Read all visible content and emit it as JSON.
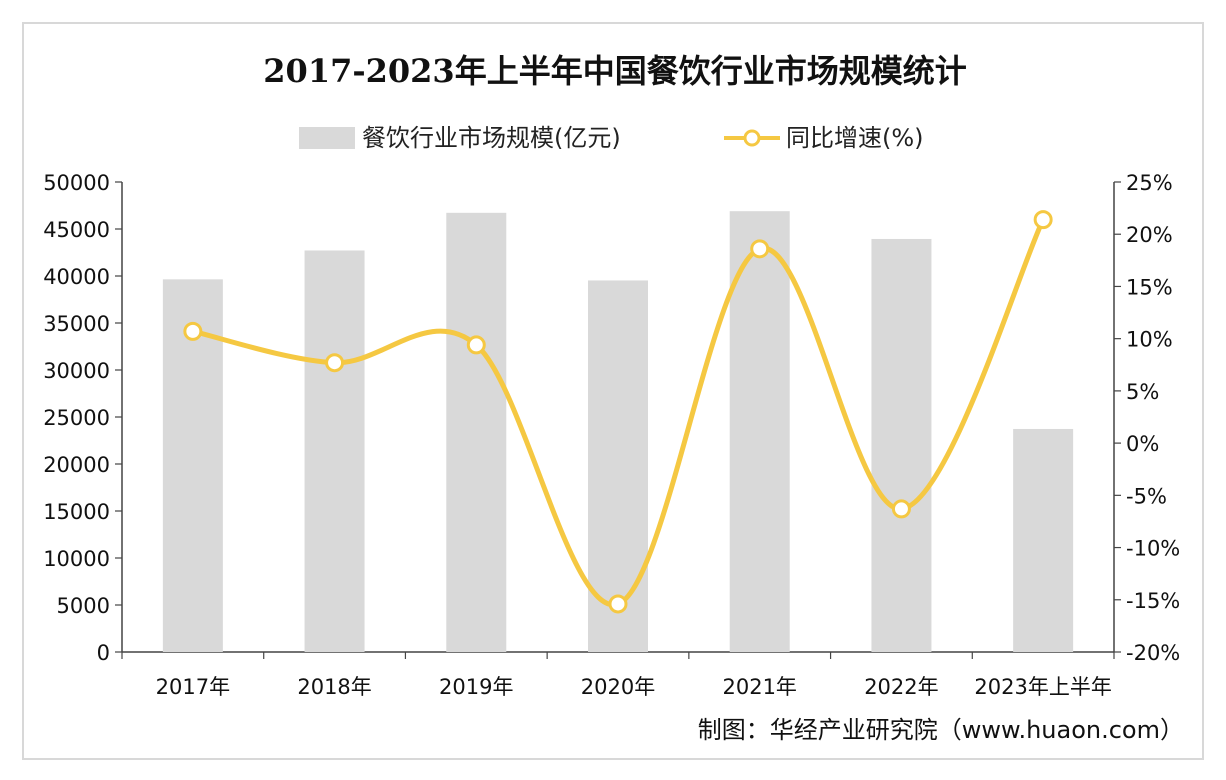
{
  "chart_data": {
    "type": "bar",
    "title": "2017-2023年上半年中国餐饮行业市场规模统计",
    "categories": [
      "2017年",
      "2018年",
      "2019年",
      "2020年",
      "2021年",
      "2022年",
      "2023年上半年"
    ],
    "series": [
      {
        "name": "餐饮行业市场规模(亿元)",
        "type": "bar",
        "axis": "left",
        "values": [
          39644,
          42716,
          46721,
          39527,
          46895,
          43941,
          23728
        ]
      },
      {
        "name": "同比增速(%)",
        "type": "line",
        "axis": "right",
        "values": [
          10.7,
          7.7,
          9.4,
          -15.4,
          18.6,
          -6.3,
          21.4
        ]
      }
    ],
    "y_left": {
      "range": [
        0,
        50000
      ],
      "ticks": [
        0,
        5000,
        10000,
        15000,
        20000,
        25000,
        30000,
        35000,
        40000,
        45000,
        50000
      ],
      "tick_labels": [
        "0",
        "5000",
        "10000",
        "15000",
        "20000",
        "25000",
        "30000",
        "35000",
        "40000",
        "45000",
        "50000"
      ]
    },
    "y_right": {
      "range": [
        -20,
        25
      ],
      "ticks": [
        -20,
        -15,
        -10,
        -5,
        0,
        5,
        10,
        15,
        20,
        25
      ],
      "tick_labels": [
        "-20%",
        "-15%",
        "-10%",
        "-5%",
        "0%",
        "5%",
        "10%",
        "15%",
        "20%",
        "25%"
      ]
    },
    "legend_position": "top",
    "grid": false,
    "colors": {
      "bar": "#d9d9d9",
      "line": "#f5c842",
      "axis": "#444444"
    },
    "source_text": "制图：华经产业研究院（www.huaon.com）"
  }
}
